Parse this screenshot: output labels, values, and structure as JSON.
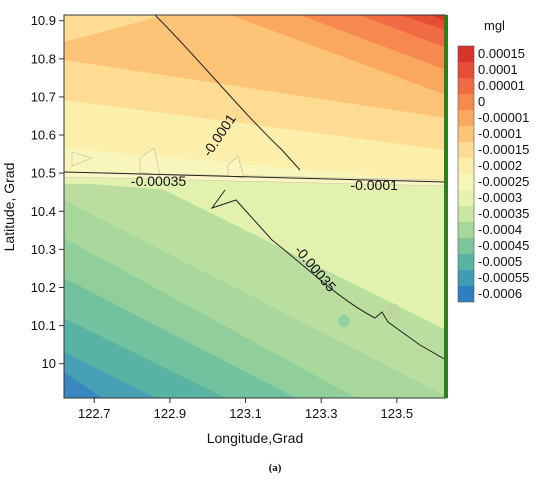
{
  "caption": "(a)",
  "chart_data": {
    "type": "contour",
    "xlabel": "Longitude,Grad",
    "ylabel": "Latitude, Grad",
    "xlim": [
      122.62,
      123.63
    ],
    "ylim": [
      9.91,
      10.915
    ],
    "x_ticks": [
      "122.7",
      "122.9",
      "123.1",
      "123.3",
      "123.5"
    ],
    "x_tick_values": [
      122.7,
      122.9,
      123.1,
      123.3,
      123.5
    ],
    "y_ticks": [
      "10",
      "10.1",
      "10.2",
      "10.3",
      "10.4",
      "10.5",
      "10.6",
      "10.7",
      "10.8",
      "10.9"
    ],
    "y_tick_values": [
      10.0,
      10.1,
      10.2,
      10.3,
      10.4,
      10.5,
      10.6,
      10.7,
      10.8,
      10.9
    ],
    "legend_title": "mgl",
    "legend": {
      "labels": [
        "0.00015",
        "0.0001",
        "0.00001",
        "0",
        "-0.00001",
        "-0.0001",
        "-0.00015",
        "-0.0002",
        "-0.00025",
        "-0.0003",
        "-0.00035",
        "-0.0004",
        "-0.00045",
        "-0.0005",
        "-0.00055",
        "-0.0006"
      ],
      "colors": [
        "#d7322b",
        "#e54d34",
        "#f06b43",
        "#f7894f",
        "#fba85f",
        "#fdc478",
        "#fedc93",
        "#feecab",
        "#f7f6b8",
        "#e6f2b0",
        "#c9e6a2",
        "#a5d89a",
        "#7dc59b",
        "#58b3a3",
        "#3e9db4",
        "#2f7fc0"
      ]
    },
    "contour_labels": [
      {
        "text": "-0.0001",
        "x": 123.03,
        "y": 10.6,
        "angle": -56
      },
      {
        "text": "-0.00035",
        "x": 122.87,
        "y": 10.48,
        "angle": 0
      },
      {
        "text": "-0.0001",
        "x": 123.44,
        "y": 10.469,
        "angle": 0
      },
      {
        "text": "-0.00035",
        "x": 123.285,
        "y": 10.25,
        "angle": 50
      }
    ],
    "grid": false
  }
}
